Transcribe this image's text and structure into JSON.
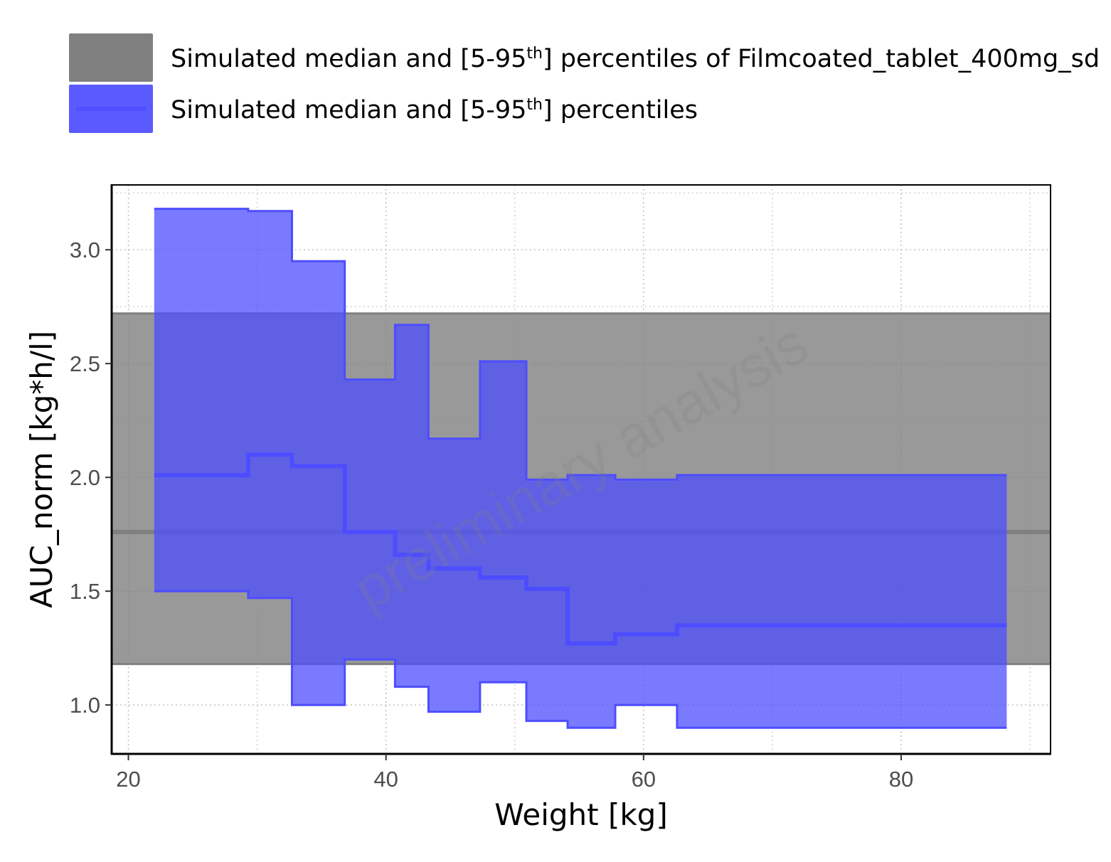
{
  "chart_data": {
    "type": "area",
    "xlabel": "Weight [kg]",
    "ylabel": "AUC_norm [kg*h/l]",
    "xlim": [
      18.7,
      91.6
    ],
    "ylim": [
      0.785,
      3.285
    ],
    "x_ticks": [
      20,
      40,
      60,
      80
    ],
    "x_tick_labels": [
      "20",
      "40",
      "60",
      "80"
    ],
    "y_ticks": [
      1.0,
      1.5,
      2.0,
      2.5,
      3.0
    ],
    "y_tick_labels": [
      "1.0",
      "1.5",
      "2.0",
      "2.5",
      "3.0"
    ],
    "grid": true,
    "legend_position": "top",
    "watermark": "preliminary analysis",
    "legend": [
      {
        "prefix": "Simulated median and [5-95",
        "sup": "th",
        "suffix": "] percentiles of Filmcoated_tablet_400mg_sd",
        "color": "#808080"
      },
      {
        "prefix": "Simulated median and [5-95",
        "sup": "th",
        "suffix": "] percentiles",
        "color": "#4d4dff"
      }
    ],
    "reference_band": {
      "color": "#808080",
      "median": 1.76,
      "p05": 1.18,
      "p95": 2.72
    },
    "series": [
      {
        "color": "#4d4dff",
        "step_x": [
          22.0,
          29.2,
          29.3,
          32.7,
          36.8,
          40.7,
          43.3,
          47.3,
          50.9,
          54.1,
          57.8,
          62.6,
          88.2
        ],
        "median": [
          2.01,
          2.01,
          2.1,
          2.05,
          1.76,
          1.66,
          1.6,
          1.56,
          1.51,
          1.27,
          1.31,
          1.35
        ],
        "p05": [
          1.5,
          1.5,
          1.47,
          1.0,
          1.2,
          1.08,
          0.97,
          1.1,
          0.93,
          0.9,
          1.0,
          0.9
        ],
        "p95": [
          3.18,
          3.18,
          3.17,
          2.95,
          2.43,
          2.67,
          2.17,
          2.51,
          1.99,
          2.01,
          1.99,
          2.01
        ]
      }
    ]
  }
}
